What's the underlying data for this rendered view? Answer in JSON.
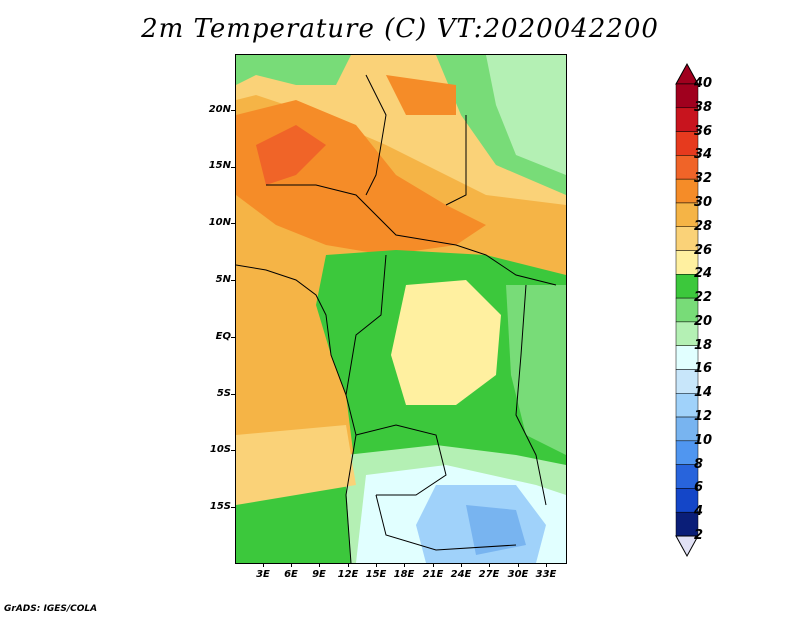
{
  "title": "2m Temperature (C) VT:2020042200",
  "credit": "GrADS: IGES/COLA",
  "latitude_labels": [
    "20N",
    "15N",
    "10N",
    "5N",
    "EQ",
    "5S",
    "10S",
    "15S"
  ],
  "longitude_labels": [
    "3E",
    "6E",
    "9E",
    "12E",
    "15E",
    "18E",
    "21E",
    "24E",
    "27E",
    "30E",
    "33E"
  ],
  "colorbar": {
    "levels": [
      "40",
      "38",
      "36",
      "34",
      "32",
      "30",
      "28",
      "26",
      "24",
      "22",
      "20",
      "18",
      "16",
      "14",
      "12",
      "10",
      "8",
      "6",
      "4",
      "2"
    ],
    "colors": [
      "#a0001e",
      "#c8141e",
      "#e63a1e",
      "#f06428",
      "#f58c28",
      "#f5b446",
      "#fad278",
      "#fff0a0",
      "#3cc83c",
      "#78dc78",
      "#b4f0b4",
      "#e1ffff",
      "#c8e6fa",
      "#a0d2fa",
      "#78b4f0",
      "#5096f0",
      "#2864dc",
      "#1446c8",
      "#0a1e78"
    ],
    "over_color": "#a0001e",
    "under_color": "#e1e1f5"
  }
}
